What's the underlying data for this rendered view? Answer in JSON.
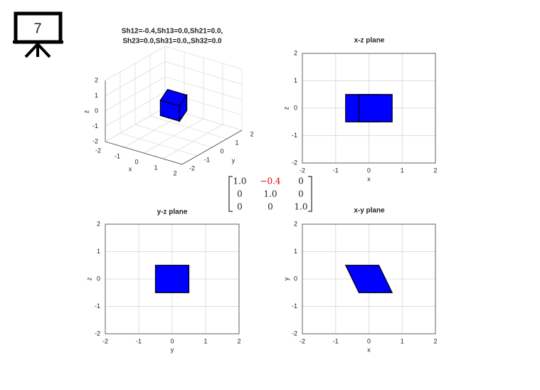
{
  "slide_number": "7",
  "matrix": {
    "rows": [
      [
        "1.0",
        "−0.4",
        "0"
      ],
      [
        "0",
        "1.0",
        "0"
      ],
      [
        "0",
        "0",
        "1.0"
      ]
    ]
  },
  "chart_data": [
    {
      "type": "polygon3d",
      "title": [
        "Sh12=-0.4,Sh13=0.0,Sh21=0.0,",
        "Sh23=0.0,Sh31=0.0,,Sh32=0.0"
      ],
      "xlabel": "x",
      "ylabel": "y",
      "zlabel": "z",
      "xlim": [
        -2,
        2
      ],
      "ylim": [
        -2,
        2
      ],
      "zlim": [
        -2,
        2
      ],
      "xticks": [
        -2,
        -1,
        0,
        1,
        2
      ],
      "yticks": [
        -2,
        -1,
        0,
        1,
        2
      ],
      "zticks": [
        -2,
        -1,
        0,
        1,
        2
      ],
      "grid": true,
      "color": "#0000ff",
      "faces": [
        {
          "x": [
            -0.3,
            0.7,
            0.7,
            -0.3
          ],
          "y": [
            -0.5,
            -0.5,
            -0.5,
            -0.5
          ],
          "z": [
            -0.5,
            -0.5,
            0.5,
            0.5
          ]
        },
        {
          "x": [
            0.7,
            0.3,
            0.3,
            0.7
          ],
          "y": [
            -0.5,
            0.5,
            0.5,
            -0.5
          ],
          "z": [
            -0.5,
            -0.5,
            0.5,
            0.5
          ]
        },
        {
          "x": [
            -0.3,
            0.7,
            0.3,
            -0.7
          ],
          "y": [
            -0.5,
            -0.5,
            0.5,
            0.5
          ],
          "z": [
            0.5,
            0.5,
            0.5,
            0.5
          ]
        }
      ]
    },
    {
      "type": "polygon",
      "title": "x-z plane",
      "xlabel": "x",
      "ylabel": "z",
      "xlim": [
        -2,
        2
      ],
      "ylim": [
        -2,
        2
      ],
      "xticks": [
        -2,
        -1,
        0,
        1,
        2
      ],
      "yticks": [
        -2,
        -1,
        0,
        1,
        2
      ],
      "grid": true,
      "color": "#0000ff",
      "shapes": [
        {
          "x": [
            -0.7,
            0.3,
            0.3,
            -0.7
          ],
          "y": [
            -0.5,
            -0.5,
            0.5,
            0.5
          ]
        },
        {
          "x": [
            -0.3,
            0.7,
            0.7,
            -0.3
          ],
          "y": [
            -0.5,
            -0.5,
            0.5,
            0.5
          ]
        }
      ]
    },
    {
      "type": "polygon",
      "title": "y-z plane",
      "xlabel": "y",
      "ylabel": "z",
      "xlim": [
        -2,
        2
      ],
      "ylim": [
        -2,
        2
      ],
      "xticks": [
        -2,
        -1,
        0,
        1,
        2
      ],
      "yticks": [
        -2,
        -1,
        0,
        1,
        2
      ],
      "grid": true,
      "color": "#0000ff",
      "shapes": [
        {
          "x": [
            -0.5,
            0.5,
            0.5,
            -0.5
          ],
          "y": [
            -0.5,
            -0.5,
            0.5,
            0.5
          ]
        }
      ]
    },
    {
      "type": "polygon",
      "title": "x-y plane",
      "xlabel": "x",
      "ylabel": "y",
      "xlim": [
        -2,
        2
      ],
      "ylim": [
        -2,
        2
      ],
      "xticks": [
        -2,
        -1,
        0,
        1,
        2
      ],
      "yticks": [
        -2,
        -1,
        0,
        1,
        2
      ],
      "grid": true,
      "color": "#0000ff",
      "shapes": [
        {
          "x": [
            -0.7,
            0.3,
            0.7,
            -0.3
          ],
          "y": [
            0.5,
            0.5,
            -0.5,
            -0.5
          ]
        }
      ]
    }
  ]
}
